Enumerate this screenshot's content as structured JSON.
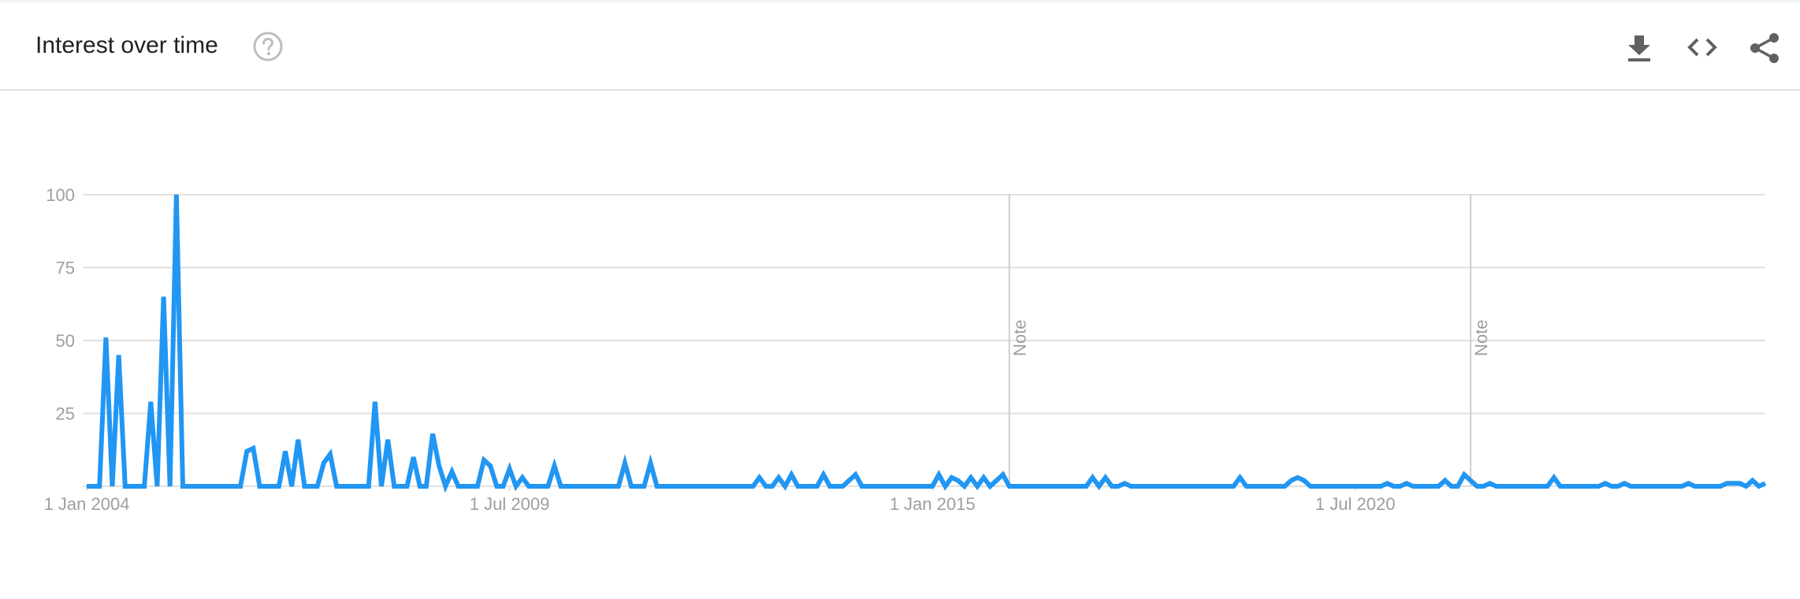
{
  "header": {
    "title": "Interest over time",
    "help_icon": "help-circle-icon",
    "tools": [
      {
        "name": "download",
        "icon": "download-icon"
      },
      {
        "name": "embed",
        "icon": "code-icon"
      },
      {
        "name": "share",
        "icon": "share-icon"
      }
    ]
  },
  "colors": {
    "line": "#2196f3",
    "grid": "#e0e0e0",
    "axis_text": "#9e9e9e",
    "note_text": "#9e9e9e"
  },
  "chart_data": {
    "type": "line",
    "title": "",
    "xlabel": "",
    "ylabel": "",
    "ylim": [
      0,
      100
    ],
    "yticks": [
      25,
      50,
      75,
      100
    ],
    "xticks": [
      {
        "label": "1 Jan 2004",
        "index": 0
      },
      {
        "label": "1 Jul 2009",
        "index": 66
      },
      {
        "label": "1 Jan 2015",
        "index": 132
      },
      {
        "label": "1 Jul 2020",
        "index": 198
      }
    ],
    "start_month": "2004-01",
    "annotations": [
      {
        "text": "Note",
        "index": 144
      },
      {
        "text": "Note",
        "index": 216
      }
    ],
    "grid": true,
    "legend": "none",
    "series": [
      {
        "values": [
          0,
          0,
          0,
          51,
          0,
          45,
          0,
          0,
          0,
          0,
          29,
          0,
          65,
          0,
          100,
          0,
          0,
          0,
          0,
          0,
          0,
          0,
          0,
          0,
          0,
          12,
          13,
          0,
          0,
          0,
          0,
          12,
          0,
          16,
          0,
          0,
          0,
          8,
          11,
          0,
          0,
          0,
          0,
          0,
          0,
          29,
          0,
          16,
          0,
          0,
          0,
          10,
          0,
          0,
          18,
          7,
          0,
          5,
          0,
          0,
          0,
          0,
          9,
          7,
          0,
          0,
          6,
          0,
          3,
          0,
          0,
          0,
          0,
          7,
          0,
          0,
          0,
          0,
          0,
          0,
          0,
          0,
          0,
          0,
          8,
          0,
          0,
          0,
          8,
          0,
          0,
          0,
          0,
          0,
          0,
          0,
          0,
          0,
          0,
          0,
          0,
          0,
          0,
          0,
          0,
          3,
          0,
          0,
          3,
          0,
          4,
          0,
          0,
          0,
          0,
          4,
          0,
          0,
          0,
          2,
          4,
          0,
          0,
          0,
          0,
          0,
          0,
          0,
          0,
          0,
          0,
          0,
          0,
          4,
          0,
          3,
          2,
          0,
          3,
          0,
          3,
          0,
          2,
          4,
          0,
          0,
          0,
          0,
          0,
          0,
          0,
          0,
          0,
          0,
          0,
          0,
          0,
          3,
          0,
          3,
          0,
          0,
          1,
          0,
          0,
          0,
          0,
          0,
          0,
          0,
          0,
          0,
          0,
          0,
          0,
          0,
          0,
          0,
          0,
          0,
          3,
          0,
          0,
          0,
          0,
          0,
          0,
          0,
          2,
          3,
          2,
          0,
          0,
          0,
          0,
          0,
          0,
          0,
          0,
          0,
          0,
          0,
          0,
          1,
          0,
          0,
          1,
          0,
          0,
          0,
          0,
          0,
          2,
          0,
          0,
          4,
          2,
          0,
          0,
          1,
          0,
          0,
          0,
          0,
          0,
          0,
          0,
          0,
          0,
          3,
          0,
          0,
          0,
          0,
          0,
          0,
          0,
          1,
          0,
          0,
          1,
          0,
          0,
          0,
          0,
          0,
          0,
          0,
          0,
          0,
          1,
          0,
          0,
          0,
          0,
          0,
          1,
          1,
          1,
          0,
          2,
          0,
          1
        ]
      }
    ]
  }
}
